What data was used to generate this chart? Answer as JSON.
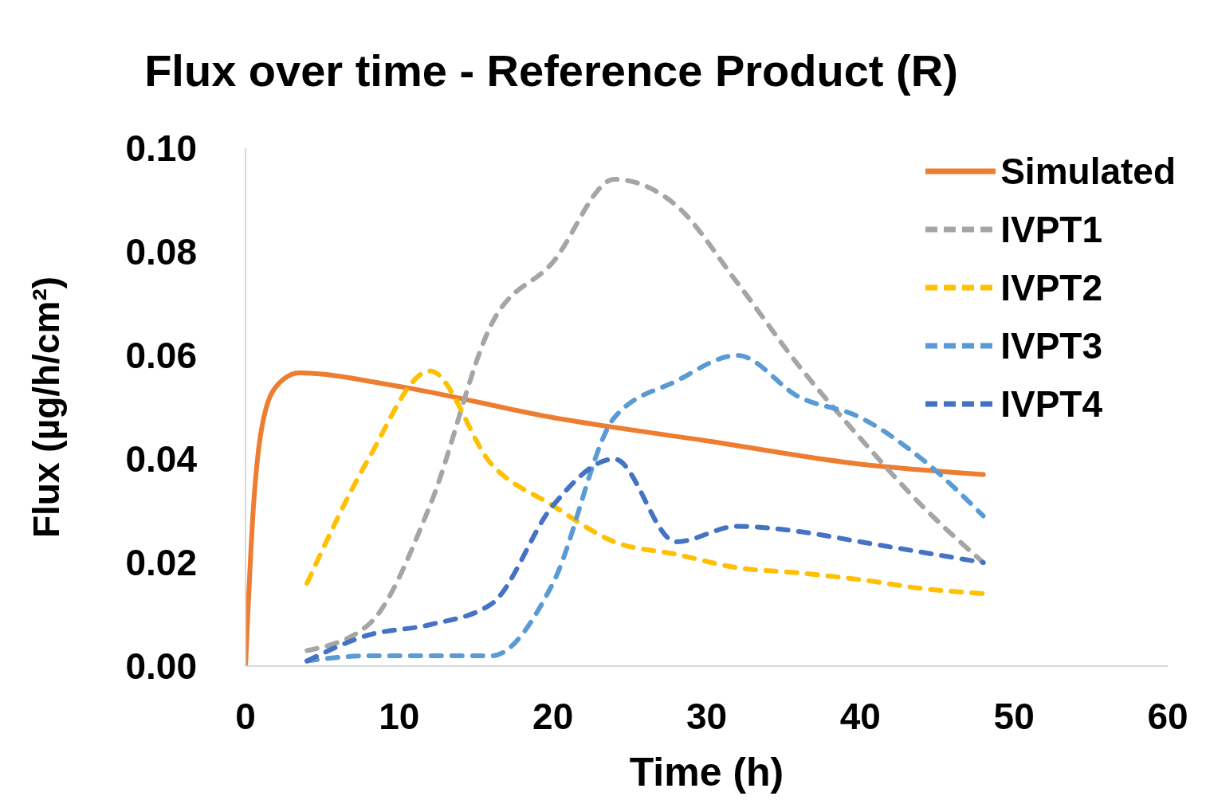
{
  "chart_data": {
    "type": "line",
    "title": "Flux over time - Reference Product (R)",
    "xlabel": "Time (h)",
    "ylabel": "Flux (µg/h/cm²)",
    "xlim": [
      0,
      60
    ],
    "xticks": [
      0,
      10,
      20,
      30,
      40,
      50,
      60
    ],
    "ylim": [
      0,
      0.1
    ],
    "yticks": [
      {
        "value": 0,
        "label": "0.00"
      },
      {
        "value": 0.02,
        "label": "0.02"
      },
      {
        "value": 0.04,
        "label": "0.04"
      },
      {
        "value": 0.06,
        "label": "0.06"
      },
      {
        "value": 0.08,
        "label": "0.08"
      },
      {
        "value": 0.1,
        "label": "0.10"
      }
    ],
    "grid": false,
    "legend": "top right",
    "marker": "none",
    "series": [
      {
        "name": "Simulated",
        "color": "#ed7d31",
        "line_style": "solid",
        "x": [
          0,
          0.5,
          1,
          2,
          3.5,
          10,
          20,
          30,
          40,
          48
        ],
        "values": [
          0,
          0.03,
          0.045,
          0.054,
          0.0566,
          0.054,
          0.048,
          0.0435,
          0.039,
          0.037
        ]
      },
      {
        "name": "IVPT1",
        "color": "#a5a5a5",
        "line_style": "dashed",
        "x": [
          4,
          8,
          12,
          16,
          20,
          24,
          28,
          32,
          36,
          40,
          44,
          48
        ],
        "values": [
          0.003,
          0.008,
          0.031,
          0.066,
          0.078,
          0.094,
          0.089,
          0.074,
          0.058,
          0.044,
          0.031,
          0.02
        ]
      },
      {
        "name": "IVPT2",
        "color": "#ffc000",
        "line_style": "dashed",
        "x": [
          4,
          8,
          12,
          16,
          20,
          24,
          28,
          32,
          36,
          40,
          44,
          48
        ],
        "values": [
          0.016,
          0.04,
          0.057,
          0.039,
          0.031,
          0.024,
          0.0216,
          0.019,
          0.018,
          0.0167,
          0.015,
          0.014
        ]
      },
      {
        "name": "IVPT3",
        "color": "#5b9bd5",
        "line_style": "dashed",
        "x": [
          4,
          8,
          12,
          16,
          20,
          24,
          28,
          32,
          36,
          40,
          44,
          48
        ],
        "values": [
          0.001,
          0.002,
          0.002,
          0.002,
          0.016,
          0.048,
          0.055,
          0.06,
          0.052,
          0.048,
          0.04,
          0.029
        ]
      },
      {
        "name": "IVPT4",
        "color": "#4472c4",
        "line_style": "dashed",
        "x": [
          4,
          8,
          12,
          16,
          20,
          24,
          28,
          32,
          36,
          40,
          44,
          48
        ],
        "values": [
          0.001,
          0.006,
          0.008,
          0.012,
          0.031,
          0.04,
          0.024,
          0.027,
          0.026,
          0.024,
          0.022,
          0.02
        ]
      }
    ]
  }
}
